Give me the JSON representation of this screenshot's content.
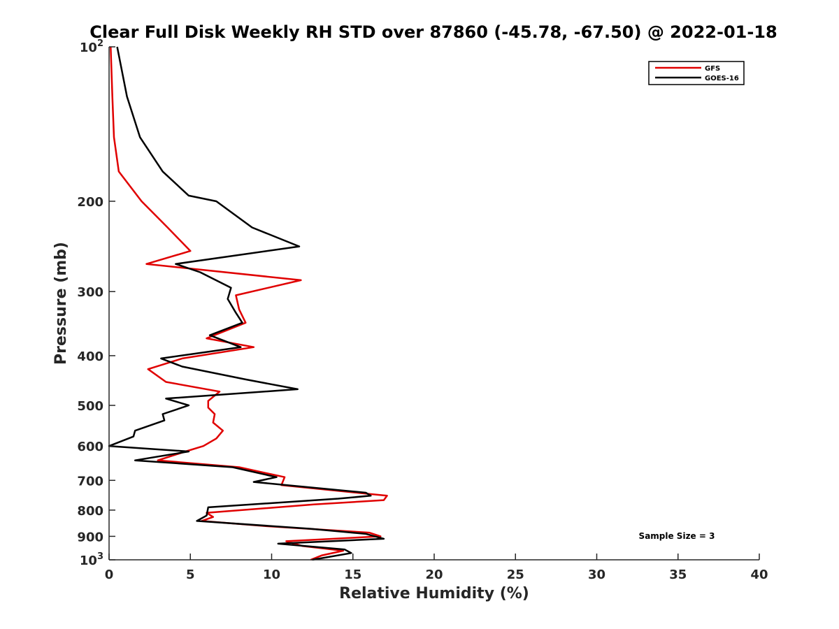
{
  "chart_data": {
    "type": "line",
    "title": "Clear Full Disk Weekly RH STD over 87860 (-45.78, -67.50) @ 2022-01-18",
    "xlabel": "Relative Humidity (%)",
    "ylabel": "Pressure (mb)",
    "xlim": [
      0,
      40
    ],
    "ylim": [
      100,
      1000
    ],
    "yscale": "log",
    "y_reversed": true,
    "x_ticks": [
      0,
      5,
      10,
      15,
      20,
      25,
      30,
      35,
      40
    ],
    "x_tick_labels": [
      "0",
      "5",
      "10",
      "15",
      "20",
      "25",
      "30",
      "35",
      "40"
    ],
    "y_ticks": [
      100,
      200,
      300,
      400,
      500,
      600,
      700,
      800,
      900,
      1000
    ],
    "y_tick_labels": [
      {
        "base": "10",
        "sup": "2"
      },
      {
        "base": "200",
        "sup": ""
      },
      {
        "base": "300",
        "sup": ""
      },
      {
        "base": "400",
        "sup": ""
      },
      {
        "base": "500",
        "sup": ""
      },
      {
        "base": "600",
        "sup": ""
      },
      {
        "base": "700",
        "sup": ""
      },
      {
        "base": "800",
        "sup": ""
      },
      {
        "base": "900",
        "sup": ""
      },
      {
        "base": "10",
        "sup": "3"
      }
    ],
    "grid": false,
    "legend_position": "top-right",
    "annotation": "Sample Size = 3",
    "series": [
      {
        "name": "GFS",
        "color": "#e00000",
        "points": [
          [
            0.1,
            100
          ],
          [
            0.2,
            125
          ],
          [
            0.3,
            150
          ],
          [
            0.6,
            175
          ],
          [
            2.0,
            200
          ],
          [
            3.6,
            225
          ],
          [
            5.0,
            250
          ],
          [
            2.3,
            265
          ],
          [
            11.8,
            285
          ],
          [
            7.8,
            305
          ],
          [
            8.0,
            325
          ],
          [
            8.4,
            345
          ],
          [
            6.0,
            370
          ],
          [
            8.9,
            385
          ],
          [
            4.5,
            405
          ],
          [
            2.4,
            425
          ],
          [
            3.5,
            450
          ],
          [
            6.8,
            470
          ],
          [
            6.1,
            490
          ],
          [
            6.1,
            505
          ],
          [
            6.5,
            520
          ],
          [
            6.4,
            540
          ],
          [
            7.0,
            560
          ],
          [
            6.6,
            580
          ],
          [
            5.8,
            600
          ],
          [
            4.7,
            615
          ],
          [
            3.0,
            640
          ],
          [
            8.0,
            660
          ],
          [
            10.8,
            690
          ],
          [
            10.6,
            715
          ],
          [
            17.1,
            750
          ],
          [
            16.9,
            765
          ],
          [
            12.6,
            780
          ],
          [
            6.0,
            810
          ],
          [
            6.4,
            825
          ],
          [
            5.7,
            840
          ],
          [
            9.7,
            860
          ],
          [
            16.0,
            885
          ],
          [
            16.7,
            900
          ],
          [
            10.9,
            920
          ],
          [
            11.9,
            940
          ],
          [
            14.4,
            960
          ],
          [
            13.1,
            980
          ],
          [
            12.4,
            1000
          ]
        ]
      },
      {
        "name": "GOES-16",
        "color": "#000000",
        "points": [
          [
            0.5,
            100
          ],
          [
            1.1,
            125
          ],
          [
            1.9,
            150
          ],
          [
            3.3,
            175
          ],
          [
            4.9,
            195
          ],
          [
            6.6,
            200
          ],
          [
            8.8,
            225
          ],
          [
            11.7,
            245
          ],
          [
            4.1,
            265
          ],
          [
            5.6,
            275
          ],
          [
            7.5,
            295
          ],
          [
            7.3,
            310
          ],
          [
            7.8,
            330
          ],
          [
            8.2,
            345
          ],
          [
            6.2,
            365
          ],
          [
            8.1,
            385
          ],
          [
            3.2,
            405
          ],
          [
            4.5,
            420
          ],
          [
            8.4,
            445
          ],
          [
            11.6,
            465
          ],
          [
            3.5,
            485
          ],
          [
            4.9,
            500
          ],
          [
            3.3,
            520
          ],
          [
            3.4,
            535
          ],
          [
            1.6,
            560
          ],
          [
            1.5,
            575
          ],
          [
            0.0,
            600
          ],
          [
            4.9,
            615
          ],
          [
            1.6,
            640
          ],
          [
            7.6,
            660
          ],
          [
            10.3,
            690
          ],
          [
            8.9,
            705
          ],
          [
            15.8,
            740
          ],
          [
            16.1,
            750
          ],
          [
            14.1,
            760
          ],
          [
            6.1,
            790
          ],
          [
            6.0,
            820
          ],
          [
            5.4,
            840
          ],
          [
            12.4,
            870
          ],
          [
            15.8,
            890
          ],
          [
            16.9,
            910
          ],
          [
            10.4,
            930
          ],
          [
            14.5,
            955
          ],
          [
            14.9,
            970
          ],
          [
            12.5,
            1000
          ]
        ]
      }
    ]
  }
}
